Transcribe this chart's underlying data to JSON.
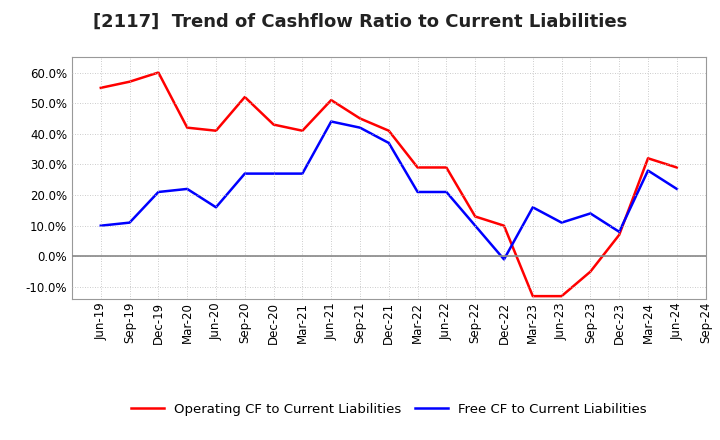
{
  "title": "[2117]  Trend of Cashflow Ratio to Current Liabilities",
  "x_labels": [
    "Jun-19",
    "Sep-19",
    "Dec-19",
    "Mar-20",
    "Jun-20",
    "Sep-20",
    "Dec-20",
    "Mar-21",
    "Jun-21",
    "Sep-21",
    "Dec-21",
    "Mar-22",
    "Jun-22",
    "Sep-22",
    "Dec-22",
    "Mar-23",
    "Jun-23",
    "Sep-23",
    "Dec-23",
    "Mar-24",
    "Jun-24",
    "Sep-24"
  ],
  "operating_cf": [
    0.55,
    0.57,
    0.6,
    0.42,
    0.41,
    0.52,
    0.43,
    0.41,
    0.51,
    0.45,
    0.41,
    0.29,
    0.29,
    0.13,
    0.1,
    -0.13,
    -0.13,
    -0.05,
    0.07,
    0.32,
    0.29,
    null
  ],
  "free_cf": [
    0.1,
    0.11,
    0.21,
    0.22,
    0.16,
    0.27,
    0.27,
    0.27,
    0.44,
    0.42,
    0.37,
    0.21,
    0.21,
    0.1,
    -0.01,
    0.16,
    0.11,
    0.14,
    0.08,
    0.28,
    0.22,
    null
  ],
  "operating_color": "#FF0000",
  "free_color": "#0000FF",
  "ylim_min": -0.14,
  "ylim_max": 0.65,
  "yticks": [
    -0.1,
    0.0,
    0.1,
    0.2,
    0.3,
    0.4,
    0.5,
    0.6
  ],
  "background_color": "#FFFFFF",
  "grid_color": "#AAAAAA",
  "legend_op": "Operating CF to Current Liabilities",
  "legend_free": "Free CF to Current Liabilities",
  "title_fontsize": 13,
  "tick_fontsize": 8.5,
  "legend_fontsize": 9.5
}
